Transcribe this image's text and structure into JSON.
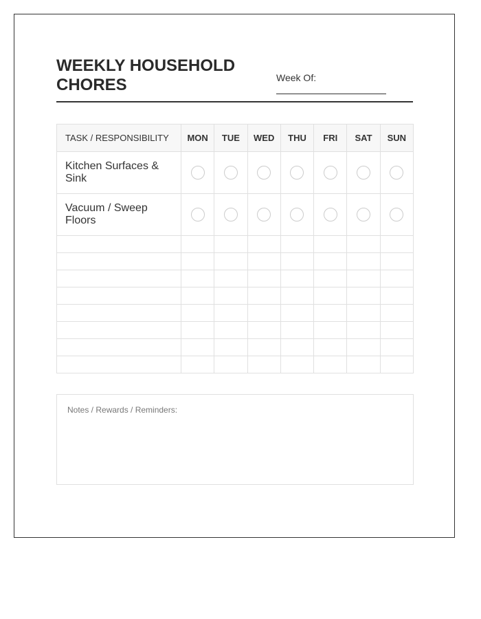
{
  "title": "WEEKLY HOUSEHOLD CHORES",
  "week_of_label": "Week Of:",
  "table": {
    "task_header": "TASK / RESPONSIBILITY",
    "days": [
      "MON",
      "TUE",
      "WED",
      "THU",
      "FRI",
      "SAT",
      "SUN"
    ],
    "tasks": [
      "Kitchen Surfaces & Sink",
      "Vacuum / Sweep Floors"
    ],
    "empty_rows": 8
  },
  "notes_label": "Notes / Rewards / Reminders:"
}
